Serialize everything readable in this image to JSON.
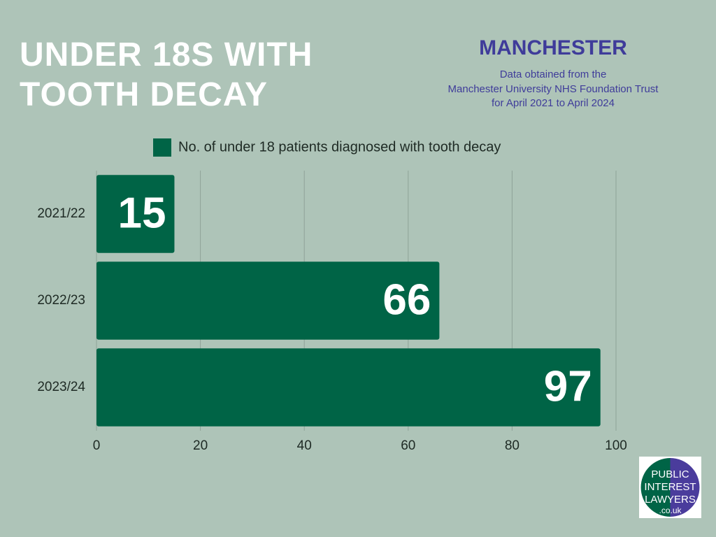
{
  "chart_data": {
    "type": "bar",
    "orientation": "horizontal",
    "title": "UNDER 18S WITH TOOTH DECAY",
    "subtitle": "MANCHESTER",
    "note": [
      "Data obtained from the",
      "Manchester University NHS Foundation Trust",
      "for April 2021 to April 2024"
    ],
    "categories": [
      "2021/22",
      "2022/23",
      "2023/24"
    ],
    "series": [
      {
        "name": "No. of under 18 patients diagnosed with tooth decay",
        "color": "#006446",
        "values": [
          15,
          66,
          97
        ]
      }
    ],
    "xlim": [
      0,
      100
    ],
    "xticks": [
      0,
      20,
      40,
      60,
      80,
      100
    ],
    "grid": true,
    "logo": [
      "PUBLIC",
      "INTEREST",
      "LAWYERS",
      ".co.uk"
    ]
  }
}
